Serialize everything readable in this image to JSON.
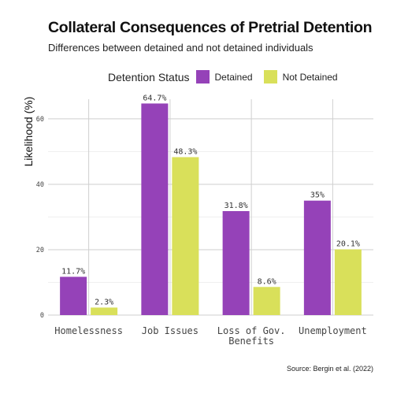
{
  "chart_data": {
    "type": "bar",
    "title": "Collateral Consequences of Pretrial Detention",
    "subtitle": "Differences between detained and not detained individuals",
    "xlabel": "",
    "ylabel": "Likelihood (%)",
    "ylim": [
      0,
      66
    ],
    "yticks": [
      0,
      20,
      40,
      60
    ],
    "grid": true,
    "legend_title": "Detention Status",
    "legend_position": "top",
    "categories": [
      "Homelessness",
      "Job Issues",
      "Loss of Gov.\nBenefits",
      "Unemployment"
    ],
    "series": [
      {
        "name": "Detained",
        "color": "#9542b8",
        "values": [
          11.7,
          64.7,
          31.8,
          35
        ],
        "labels": [
          "11.7%",
          "64.7%",
          "31.8%",
          "35%"
        ]
      },
      {
        "name": "Not Detained",
        "color": "#d9e05a",
        "values": [
          2.3,
          48.3,
          8.6,
          20.1
        ],
        "labels": [
          "2.3%",
          "48.3%",
          "8.6%",
          "20.1%"
        ]
      }
    ],
    "source": "Source: Bergin et al. (2022)"
  }
}
